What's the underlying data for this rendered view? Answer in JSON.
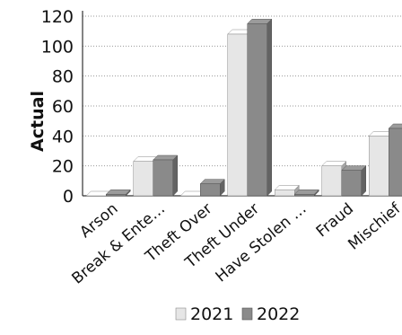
{
  "chart_data": {
    "type": "bar",
    "ylabel": "Actual",
    "ylim": [
      0,
      120
    ],
    "yticks": [
      0,
      20,
      40,
      60,
      80,
      100,
      120
    ],
    "grid": true,
    "legend_position": "bottom",
    "categories": [
      "Arson",
      "Break & Ente…",
      "Theft Over",
      "Theft Under",
      "Have Stolen …",
      "Fraud",
      "Mischief"
    ],
    "series": [
      {
        "name": "2021",
        "color": "#e6e6e6",
        "values": [
          0,
          23,
          0,
          108,
          4,
          20,
          40
        ]
      },
      {
        "name": "2022",
        "color": "#8a8a8a",
        "values": [
          1,
          24,
          8,
          115,
          1,
          17,
          45
        ]
      }
    ]
  }
}
